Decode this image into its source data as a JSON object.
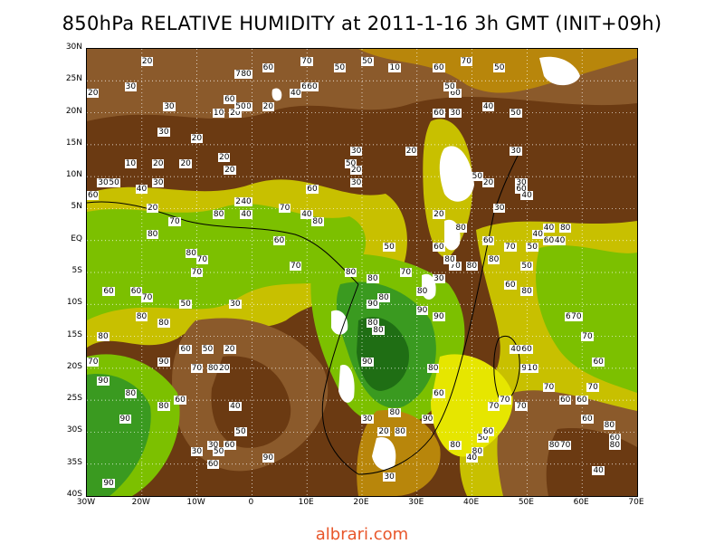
{
  "title": "850hPa RELATIVE HUMIDITY at 2011-1-16 3h GMT (INIT+09h)",
  "watermark": "albrari.com",
  "map": {
    "lat_ticks": [
      "30N",
      "25N",
      "20N",
      "15N",
      "10N",
      "5N",
      "EQ",
      "5S",
      "10S",
      "15S",
      "20S",
      "25S",
      "30S",
      "35S",
      "40S"
    ],
    "lon_ticks": [
      "30W",
      "20W",
      "10W",
      "0",
      "10E",
      "20E",
      "30E",
      "40E",
      "50E",
      "60E",
      "70E"
    ],
    "lat_range": [
      -40,
      30
    ],
    "lon_range": [
      -30,
      70
    ],
    "grid": "dotted",
    "colors": {
      "very_dry": "#6b3a12",
      "dry": "#8b5a2b",
      "moderate_dry": "#b8860b",
      "moderate": "#c8c000",
      "moist": "#e6e600",
      "wet": "#7cc000",
      "very_wet": "#3a9a20",
      "saturated": "#1f6e14",
      "no_data": "#ffffff"
    }
  },
  "contour_labels": [
    {
      "text": "20",
      "lon": -19,
      "lat": 28
    },
    {
      "text": "60",
      "lon": 3,
      "lat": 27
    },
    {
      "text": "70",
      "lon": 10,
      "lat": 28
    },
    {
      "text": "50",
      "lon": 16,
      "lat": 27
    },
    {
      "text": "50",
      "lon": 21,
      "lat": 28
    },
    {
      "text": "10",
      "lon": 26,
      "lat": 27
    },
    {
      "text": "30",
      "lon": -22,
      "lat": 24
    },
    {
      "text": "20",
      "lon": -29,
      "lat": 23
    },
    {
      "text": "30",
      "lon": -15,
      "lat": 21
    },
    {
      "text": "10",
      "lon": -6,
      "lat": 20
    },
    {
      "text": "20",
      "lon": -3,
      "lat": 20
    },
    {
      "text": "20",
      "lon": 3,
      "lat": 21
    },
    {
      "text": "60",
      "lon": -4,
      "lat": 22
    },
    {
      "text": "40",
      "lon": -1,
      "lat": 21
    },
    {
      "text": "50",
      "lon": -2,
      "lat": 21
    },
    {
      "text": "70",
      "lon": -2,
      "lat": 26
    },
    {
      "text": "80",
      "lon": -1,
      "lat": 26
    },
    {
      "text": "60",
      "lon": 10,
      "lat": 24
    },
    {
      "text": "40",
      "lon": 8,
      "lat": 23
    },
    {
      "text": "60",
      "lon": 11,
      "lat": 24
    },
    {
      "text": "30",
      "lon": 37,
      "lat": 20
    },
    {
      "text": "30",
      "lon": -16,
      "lat": 17
    },
    {
      "text": "20",
      "lon": -10,
      "lat": 16
    },
    {
      "text": "10",
      "lon": -22,
      "lat": 12
    },
    {
      "text": "20",
      "lon": -17,
      "lat": 12
    },
    {
      "text": "20",
      "lon": -12,
      "lat": 12
    },
    {
      "text": "20",
      "lon": -4,
      "lat": 11
    },
    {
      "text": "20",
      "lon": -5,
      "lat": 13
    },
    {
      "text": "30",
      "lon": 19,
      "lat": 14
    },
    {
      "text": "50",
      "lon": 18,
      "lat": 12
    },
    {
      "text": "20",
      "lon": 19,
      "lat": 11
    },
    {
      "text": "30",
      "lon": 19,
      "lat": 9
    },
    {
      "text": "30",
      "lon": -27,
      "lat": 9
    },
    {
      "text": "50",
      "lon": -25,
      "lat": 9
    },
    {
      "text": "40",
      "lon": -20,
      "lat": 8
    },
    {
      "text": "30",
      "lon": -17,
      "lat": 9
    },
    {
      "text": "60",
      "lon": 11,
      "lat": 8
    },
    {
      "text": "60",
      "lon": -30,
      "lat": 7
    },
    {
      "text": "20",
      "lon": -2,
      "lat": 6
    },
    {
      "text": "20",
      "lon": -18,
      "lat": 5
    },
    {
      "text": "80",
      "lon": -6,
      "lat": 4
    },
    {
      "text": "40",
      "lon": -1,
      "lat": 4
    },
    {
      "text": "40",
      "lon": 10,
      "lat": 4
    },
    {
      "text": "40",
      "lon": -1,
      "lat": 6
    },
    {
      "text": "70",
      "lon": 6,
      "lat": 5
    },
    {
      "text": "70",
      "lon": -14,
      "lat": 3
    },
    {
      "text": "80",
      "lon": -18,
      "lat": 1
    },
    {
      "text": "80",
      "lon": 12,
      "lat": 3
    },
    {
      "text": "80",
      "lon": -11,
      "lat": -2
    },
    {
      "text": "70",
      "lon": -9,
      "lat": -3
    },
    {
      "text": "70",
      "lon": 8,
      "lat": -4
    },
    {
      "text": "70",
      "lon": -10,
      "lat": -5
    },
    {
      "text": "50",
      "lon": 25,
      "lat": -1
    },
    {
      "text": "60",
      "lon": 5,
      "lat": 0
    },
    {
      "text": "60",
      "lon": -26,
      "lat": -8
    },
    {
      "text": "60",
      "lon": -21,
      "lat": -8
    },
    {
      "text": "70",
      "lon": -19,
      "lat": -9
    },
    {
      "text": "50",
      "lon": -12,
      "lat": -10
    },
    {
      "text": "30",
      "lon": -3,
      "lat": -10
    },
    {
      "text": "80",
      "lon": -16,
      "lat": -13
    },
    {
      "text": "80",
      "lon": -20,
      "lat": -12
    },
    {
      "text": "80",
      "lon": -27,
      "lat": -15
    },
    {
      "text": "60",
      "lon": -12,
      "lat": -17
    },
    {
      "text": "50",
      "lon": -8,
      "lat": -17
    },
    {
      "text": "20",
      "lon": -4,
      "lat": -17
    },
    {
      "text": "90",
      "lon": -16,
      "lat": -19
    },
    {
      "text": "70",
      "lon": -29,
      "lat": -19
    },
    {
      "text": "70",
      "lon": -10,
      "lat": -20
    },
    {
      "text": "80",
      "lon": -7,
      "lat": -20
    },
    {
      "text": "20",
      "lon": -5,
      "lat": -20
    },
    {
      "text": "90",
      "lon": -27,
      "lat": -22
    },
    {
      "text": "80",
      "lon": -22,
      "lat": -24
    },
    {
      "text": "80",
      "lon": -16,
      "lat": -26
    },
    {
      "text": "60",
      "lon": -13,
      "lat": -25
    },
    {
      "text": "40",
      "lon": -3,
      "lat": -26
    },
    {
      "text": "90",
      "lon": -23,
      "lat": -28
    },
    {
      "text": "50",
      "lon": -2,
      "lat": -30
    },
    {
      "text": "30",
      "lon": -7,
      "lat": -32
    },
    {
      "text": "60",
      "lon": -4,
      "lat": -32
    },
    {
      "text": "50",
      "lon": -6,
      "lat": -33
    },
    {
      "text": "30",
      "lon": -10,
      "lat": -33
    },
    {
      "text": "90",
      "lon": 3,
      "lat": -34
    },
    {
      "text": "60",
      "lon": -7,
      "lat": -35
    },
    {
      "text": "90",
      "lon": -26,
      "lat": -38
    }
  ],
  "sea_labels": [
    {
      "text": "60",
      "lon": 54,
      "lat": 0
    },
    {
      "text": "80",
      "lon": 57,
      "lat": 2
    },
    {
      "text": "50",
      "lon": 51,
      "lat": -1
    },
    {
      "text": "70",
      "lon": 47,
      "lat": -1
    },
    {
      "text": "80",
      "lon": 44,
      "lat": -3
    },
    {
      "text": "60",
      "lon": 43,
      "lat": 0
    },
    {
      "text": "40",
      "lon": 52,
      "lat": 1
    },
    {
      "text": "40",
      "lon": 56,
      "lat": 0
    },
    {
      "text": "50",
      "lon": 50,
      "lat": -4
    },
    {
      "text": "60",
      "lon": 47,
      "lat": -7
    },
    {
      "text": "80",
      "lon": 50,
      "lat": -8
    },
    {
      "text": "60",
      "lon": 58,
      "lat": -12
    },
    {
      "text": "70",
      "lon": 59,
      "lat": -12
    },
    {
      "text": "70",
      "lon": 61,
      "lat": -15
    },
    {
      "text": "60",
      "lon": 63,
      "lat": -19
    },
    {
      "text": "70",
      "lon": 62,
      "lat": -23
    },
    {
      "text": "60",
      "lon": 60,
      "lat": -25
    },
    {
      "text": "60",
      "lon": 57,
      "lat": -25
    },
    {
      "text": "60",
      "lon": 61,
      "lat": -28
    },
    {
      "text": "80",
      "lon": 65,
      "lat": -29
    },
    {
      "text": "60",
      "lon": 66,
      "lat": -31
    },
    {
      "text": "80",
      "lon": 66,
      "lat": -32
    },
    {
      "text": "40",
      "lon": 63,
      "lat": -36
    },
    {
      "text": "70",
      "lon": 54,
      "lat": -23
    },
    {
      "text": "80",
      "lon": 55,
      "lat": -32
    },
    {
      "text": "70",
      "lon": 57,
      "lat": -32
    },
    {
      "text": "90",
      "lon": 50,
      "lat": -20
    },
    {
      "text": "10",
      "lon": 51,
      "lat": -20
    },
    {
      "text": "60",
      "lon": 50,
      "lat": -17
    },
    {
      "text": "40",
      "lon": 48,
      "lat": -17
    },
    {
      "text": "70",
      "lon": 46,
      "lat": -25
    },
    {
      "text": "70",
      "lon": 49,
      "lat": -26
    },
    {
      "text": "80",
      "lon": 41,
      "lat": -33
    },
    {
      "text": "80",
      "lon": 37,
      "lat": -32
    },
    {
      "text": "40",
      "lon": 40,
      "lat": -34
    },
    {
      "text": "50",
      "lon": 42,
      "lat": -31
    },
    {
      "text": "60",
      "lon": 43,
      "lat": -30
    },
    {
      "text": "70",
      "lon": 44,
      "lat": -26
    },
    {
      "text": "30",
      "lon": 25,
      "lat": -37
    },
    {
      "text": "60",
      "lon": 34,
      "lat": -24
    },
    {
      "text": "90",
      "lon": 32,
      "lat": -28
    },
    {
      "text": "80",
      "lon": 27,
      "lat": -30
    },
    {
      "text": "80",
      "lon": 26,
      "lat": -27
    },
    {
      "text": "30",
      "lon": 21,
      "lat": -28
    },
    {
      "text": "20",
      "lon": 24,
      "lat": -30
    },
    {
      "text": "80",
      "lon": 33,
      "lat": -20
    },
    {
      "text": "90",
      "lon": 21,
      "lat": -19
    },
    {
      "text": "80",
      "lon": 22,
      "lat": -13
    },
    {
      "text": "80",
      "lon": 24,
      "lat": -9
    },
    {
      "text": "80",
      "lon": 23,
      "lat": -14
    },
    {
      "text": "90",
      "lon": 22,
      "lat": -10
    },
    {
      "text": "80",
      "lon": 40,
      "lat": -4
    },
    {
      "text": "70",
      "lon": 37,
      "lat": -4
    },
    {
      "text": "80",
      "lon": 36,
      "lat": -3
    },
    {
      "text": "60",
      "lon": 34,
      "lat": -1
    },
    {
      "text": "30",
      "lon": 34,
      "lat": -6
    },
    {
      "text": "80",
      "lon": 31,
      "lat": -8
    },
    {
      "text": "90",
      "lon": 31,
      "lat": -11
    },
    {
      "text": "90",
      "lon": 34,
      "lat": -12
    },
    {
      "text": "70",
      "lon": 28,
      "lat": -5
    },
    {
      "text": "80",
      "lon": 22,
      "lat": -6
    },
    {
      "text": "80",
      "lon": 18,
      "lat": -5
    },
    {
      "text": "50",
      "lon": 48,
      "lat": 20
    },
    {
      "text": "50",
      "lon": 41,
      "lat": 10
    },
    {
      "text": "20",
      "lon": 43,
      "lat": 9
    },
    {
      "text": "30",
      "lon": 48,
      "lat": 14
    },
    {
      "text": "30",
      "lon": 49,
      "lat": 9
    },
    {
      "text": "60",
      "lon": 49,
      "lat": 8
    },
    {
      "text": "40",
      "lon": 50,
      "lat": 7
    },
    {
      "text": "40",
      "lon": 54,
      "lat": 2
    },
    {
      "text": "30",
      "lon": 45,
      "lat": 5
    },
    {
      "text": "20",
      "lon": 34,
      "lat": 4
    },
    {
      "text": "80",
      "lon": 38,
      "lat": 2
    },
    {
      "text": "20",
      "lon": 29,
      "lat": 14
    },
    {
      "text": "60",
      "lon": 34,
      "lat": 20
    },
    {
      "text": "60",
      "lon": 37,
      "lat": 23
    },
    {
      "text": "40",
      "lon": 43,
      "lat": 21
    },
    {
      "text": "50",
      "lon": 36,
      "lat": 24
    },
    {
      "text": "60",
      "lon": 34,
      "lat": 27
    },
    {
      "text": "70",
      "lon": 39,
      "lat": 28
    },
    {
      "text": "50",
      "lon": 45,
      "lat": 27
    }
  ]
}
